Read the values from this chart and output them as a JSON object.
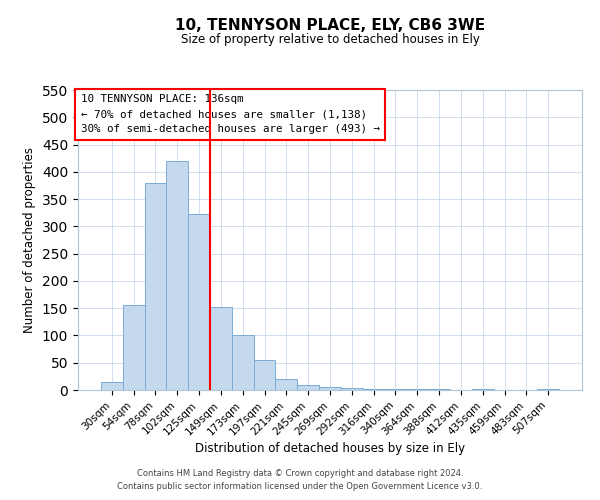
{
  "title": "10, TENNYSON PLACE, ELY, CB6 3WE",
  "subtitle": "Size of property relative to detached houses in Ely",
  "xlabel": "Distribution of detached houses by size in Ely",
  "ylabel": "Number of detached properties",
  "bar_labels": [
    "30sqm",
    "54sqm",
    "78sqm",
    "102sqm",
    "125sqm",
    "149sqm",
    "173sqm",
    "197sqm",
    "221sqm",
    "245sqm",
    "269sqm",
    "292sqm",
    "316sqm",
    "340sqm",
    "364sqm",
    "388sqm",
    "412sqm",
    "435sqm",
    "459sqm",
    "483sqm",
    "507sqm"
  ],
  "bar_heights": [
    15,
    155,
    380,
    420,
    323,
    152,
    100,
    55,
    20,
    10,
    5,
    3,
    2,
    1,
    1,
    1,
    0,
    1,
    0,
    0,
    1
  ],
  "bar_color": "#c5d9ee",
  "bar_edge_color": "#7aadd4",
  "vline_color": "red",
  "vline_position": 4.5,
  "ylim": [
    0,
    550
  ],
  "yticks": [
    0,
    50,
    100,
    150,
    200,
    250,
    300,
    350,
    400,
    450,
    500,
    550
  ],
  "annotation_title": "10 TENNYSON PLACE: 136sqm",
  "annotation_line1": "← 70% of detached houses are smaller (1,138)",
  "annotation_line2": "30% of semi-detached houses are larger (493) →",
  "annotation_box_color": "white",
  "annotation_box_edge_color": "red",
  "footer1": "Contains HM Land Registry data © Crown copyright and database right 2024.",
  "footer2": "Contains public sector information licensed under the Open Government Licence v3.0.",
  "background_color": "white",
  "grid_color": "#c8d8ea"
}
